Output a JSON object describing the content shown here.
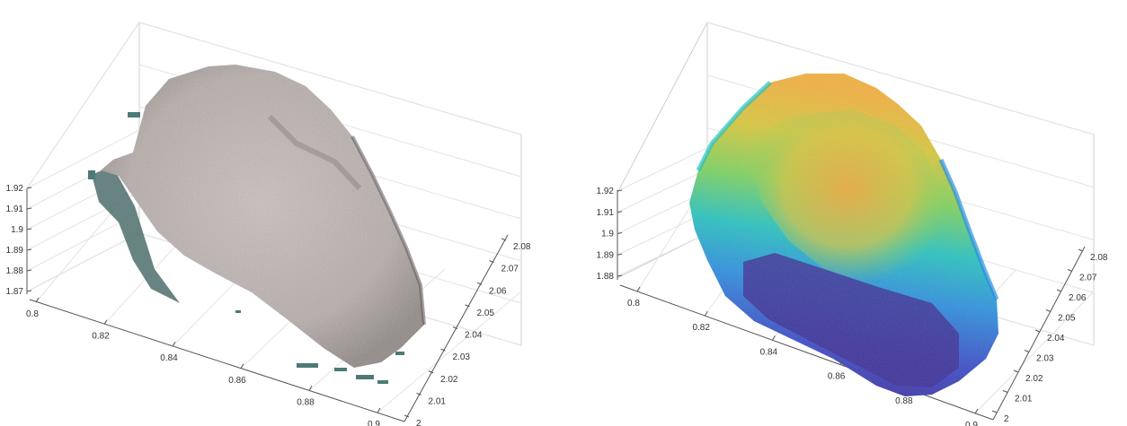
{
  "chart_data": [
    {
      "type": "scatter",
      "render": "3d-point-cloud",
      "coloring": "rgb-texture",
      "point_color": "#bcb3b0",
      "edge_color": "#3f6b66",
      "x_ticks": [
        "0.8",
        "0.82",
        "0.84",
        "0.86",
        "0.88",
        "0.9"
      ],
      "y_ticks": [
        "2",
        "2.01",
        "2.02",
        "2.03",
        "2.04",
        "2.05",
        "2.06",
        "2.07",
        "2.08"
      ],
      "z_ticks": [
        "1.87",
        "1.88",
        "1.89",
        "1.9",
        "1.91",
        "1.92"
      ],
      "xlim": [
        0.79,
        0.91
      ],
      "ylim": [
        2.0,
        2.085
      ],
      "zlim": [
        1.87,
        1.92
      ],
      "grid": true
    },
    {
      "type": "scatter",
      "render": "3d-point-cloud",
      "coloring": "height-colormap",
      "colormap": [
        "#3b1f8f",
        "#3949c8",
        "#2a8fe0",
        "#25c3c0",
        "#7ed35c",
        "#d9c93a",
        "#f4b03c"
      ],
      "x_ticks": [
        "0.8",
        "0.82",
        "0.84",
        "0.86",
        "0.88",
        "0.9"
      ],
      "y_ticks": [
        "2",
        "2.01",
        "2.02",
        "2.03",
        "2.04",
        "2.05",
        "2.06",
        "2.07",
        "2.08"
      ],
      "z_ticks": [
        "1.88",
        "1.89",
        "1.9",
        "1.91",
        "1.92"
      ],
      "xlim": [
        0.79,
        0.91
      ],
      "ylim": [
        2.0,
        2.085
      ],
      "zlim": [
        1.88,
        1.92
      ],
      "grid": true
    }
  ]
}
